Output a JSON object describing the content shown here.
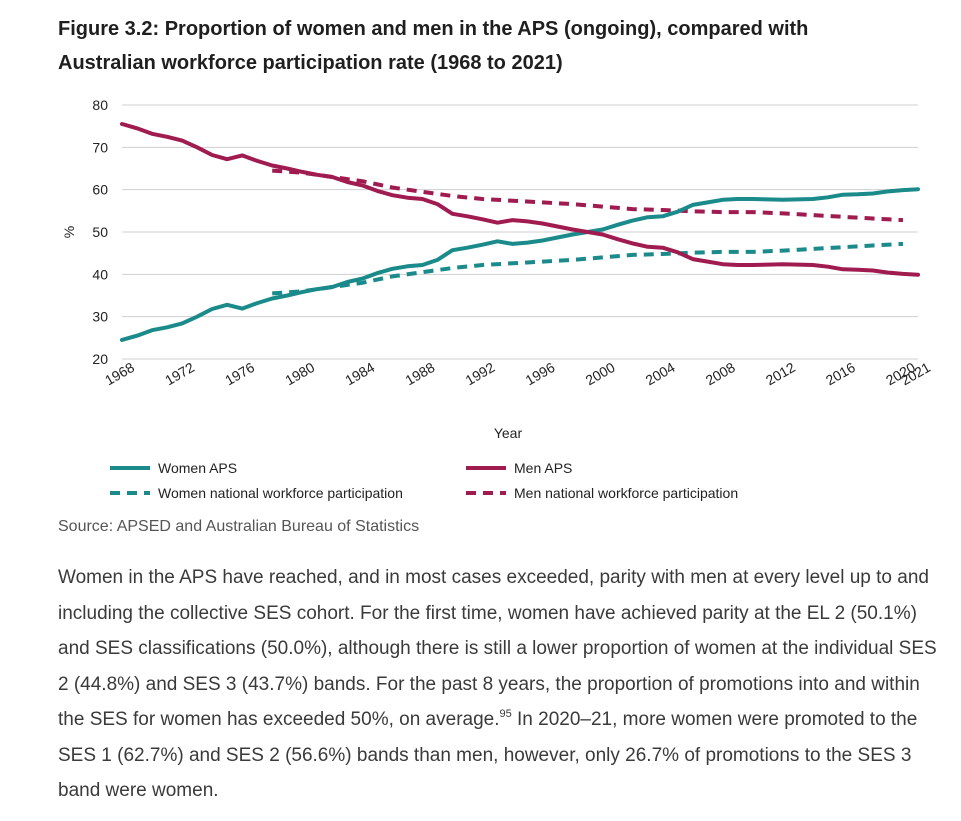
{
  "figure": {
    "title_line1": "Figure 3.2: Proportion of women and men in the APS (ongoing), compared with",
    "title_line2": "Australian workforce participation rate (1968 to 2021)"
  },
  "source": "Source: APSED and Australian Bureau of Statistics",
  "paragraph": {
    "text": "Women in the APS have reached, and in most cases exceeded, parity with men at every level up to and including the collective SES cohort. For the first time, women have achieved parity at the EL 2 (50.1%) and SES classifications (50.0%), although there is still a lower proportion of women at the individual SES 2 (44.8%) and SES 3 (43.7%) bands. For the past 8 years, the proportion of promotions into and within the SES for women has exceeded 50%, on average.",
    "footnote": "95",
    "text2": "In 2020–21, more women were promoted to the SES 1 (62.7%) and SES 2 (56.6%) bands than men, however, only 26.7% of promotions to the SES 3 band were women."
  },
  "colors": {
    "women": "#1b8a8a",
    "men": "#a01c50",
    "grid": "#cfcfcf"
  },
  "chart_data": {
    "type": "line",
    "title": "Figure 3.2: Proportion of women and men in the APS (ongoing), compared with Australian workforce participation rate (1968 to 2021)",
    "xlabel": "Year",
    "ylabel": "%",
    "xlim": [
      1968,
      2021
    ],
    "ylim": [
      20,
      80
    ],
    "yticks": [
      20,
      30,
      40,
      50,
      60,
      70,
      80
    ],
    "xticks": [
      "1968",
      "1972",
      "1976",
      "1980",
      "1984",
      "1988",
      "1992",
      "1996",
      "2000",
      "2004",
      "2008",
      "2012",
      "2016",
      "2020",
      "2021"
    ],
    "legend_position": "bottom",
    "series": [
      {
        "name": "Women APS",
        "style": "solid",
        "color": "#1b8a8a",
        "x": [
          1968,
          1969,
          1970,
          1971,
          1972,
          1973,
          1974,
          1975,
          1976,
          1977,
          1978,
          1979,
          1980,
          1981,
          1982,
          1983,
          1984,
          1985,
          1986,
          1987,
          1988,
          1989,
          1990,
          1991,
          1992,
          1993,
          1994,
          1995,
          1996,
          1997,
          1998,
          1999,
          2000,
          2001,
          2002,
          2003,
          2004,
          2005,
          2006,
          2007,
          2008,
          2009,
          2010,
          2011,
          2012,
          2013,
          2014,
          2015,
          2016,
          2017,
          2018,
          2019,
          2020,
          2021
        ],
        "values": [
          24.5,
          25.5,
          26.8,
          27.5,
          28.4,
          30,
          31.8,
          32.8,
          31.9,
          33.2,
          34.3,
          35,
          35.8,
          36.5,
          37,
          38.2,
          39,
          40.3,
          41.3,
          41.9,
          42.2,
          43.4,
          45.7,
          46.3,
          47,
          47.8,
          47.2,
          47.5,
          48,
          48.7,
          49.4,
          50,
          50.6,
          51.7,
          52.7,
          53.5,
          53.7,
          54.8,
          56.4,
          57,
          57.6,
          57.8,
          57.8,
          57.7,
          57.6,
          57.7,
          57.8,
          58.2,
          58.8,
          58.9,
          59.1,
          59.6,
          59.9,
          60.1
        ]
      },
      {
        "name": "Men APS",
        "style": "solid",
        "color": "#a01c50",
        "x": [
          1968,
          1969,
          1970,
          1971,
          1972,
          1973,
          1974,
          1975,
          1976,
          1977,
          1978,
          1979,
          1980,
          1981,
          1982,
          1983,
          1984,
          1985,
          1986,
          1987,
          1988,
          1989,
          1990,
          1991,
          1992,
          1993,
          1994,
          1995,
          1996,
          1997,
          1998,
          1999,
          2000,
          2001,
          2002,
          2003,
          2004,
          2005,
          2006,
          2007,
          2008,
          2009,
          2010,
          2011,
          2012,
          2013,
          2014,
          2015,
          2016,
          2017,
          2018,
          2019,
          2020,
          2021
        ],
        "values": [
          75.5,
          74.5,
          73.2,
          72.5,
          71.6,
          70,
          68.2,
          67.2,
          68.1,
          66.8,
          65.7,
          65,
          64.2,
          63.5,
          63,
          61.8,
          61,
          59.7,
          58.7,
          58.1,
          57.8,
          56.6,
          54.3,
          53.7,
          53,
          52.2,
          52.8,
          52.5,
          52,
          51.3,
          50.6,
          50,
          49.4,
          48.3,
          47.3,
          46.5,
          46.3,
          45.2,
          43.6,
          43,
          42.4,
          42.2,
          42.2,
          42.3,
          42.4,
          42.3,
          42.2,
          41.8,
          41.2,
          41.1,
          40.9,
          40.4,
          40.1,
          39.9
        ]
      },
      {
        "name": "Women national workforce participation",
        "style": "dashed",
        "color": "#1b8a8a",
        "x": [
          1978,
          1980,
          1982,
          1984,
          1986,
          1988,
          1990,
          1992,
          1994,
          1996,
          1998,
          2000,
          2002,
          2004,
          2006,
          2008,
          2010,
          2012,
          2014,
          2016,
          2018,
          2020
        ],
        "values": [
          35.5,
          36,
          37,
          38,
          39.5,
          40.5,
          41.5,
          42.2,
          42.6,
          43,
          43.4,
          44,
          44.6,
          44.8,
          45.1,
          45.3,
          45.3,
          45.6,
          46,
          46.4,
          46.8,
          47.2
        ]
      },
      {
        "name": "Men national workforce participation",
        "style": "dashed",
        "color": "#a01c50",
        "x": [
          1978,
          1980,
          1982,
          1984,
          1986,
          1988,
          1990,
          1992,
          1994,
          1996,
          1998,
          2000,
          2002,
          2004,
          2006,
          2008,
          2010,
          2012,
          2014,
          2016,
          2018,
          2020
        ],
        "values": [
          64.5,
          64,
          63,
          62,
          60.5,
          59.5,
          58.5,
          57.8,
          57.4,
          57,
          56.6,
          56,
          55.4,
          55.2,
          54.9,
          54.7,
          54.7,
          54.4,
          54,
          53.6,
          53.2,
          52.8
        ]
      }
    ]
  }
}
